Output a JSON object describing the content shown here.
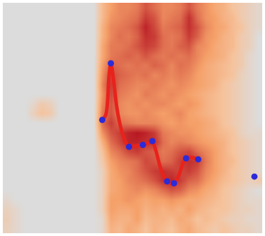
{
  "chart_data": {
    "type": "heatmap",
    "xlim": [
      -0.5,
      29.5
    ],
    "ylim": [
      -0.5,
      23.5
    ],
    "zlim": [
      0,
      1
    ],
    "tick_labels": false,
    "cells": [
      [
        0.1,
        0.05,
        0,
        0,
        0,
        0,
        0,
        0,
        0,
        0,
        0,
        0.05,
        0.3,
        0.25,
        0.35,
        0.3,
        0.2,
        0.3,
        0.25,
        0.2,
        0.3,
        0.35,
        0.25,
        0.2,
        0.15,
        0.2,
        0.15,
        0.1,
        0.1,
        0.05
      ],
      [
        0.12,
        0.05,
        0,
        0,
        0,
        0,
        0,
        0,
        0,
        0,
        0,
        0.05,
        0.35,
        0.3,
        0.3,
        0.4,
        0.25,
        0.3,
        0.3,
        0.25,
        0.35,
        0.3,
        0.2,
        0.25,
        0.2,
        0.15,
        0.1,
        0.1,
        0.05,
        0.05
      ],
      [
        0.1,
        0.05,
        0,
        0,
        0,
        0,
        0,
        0,
        0,
        0,
        0,
        0.1,
        0.4,
        0.35,
        0.35,
        0.4,
        0.3,
        0.35,
        0.3,
        0.35,
        0.3,
        0.4,
        0.3,
        0.25,
        0.2,
        0.2,
        0.15,
        0.1,
        0.1,
        0.05
      ],
      [
        0.05,
        0,
        0,
        0,
        0,
        0,
        0,
        0,
        0,
        0,
        0,
        0.1,
        0.4,
        0.4,
        0.45,
        0.4,
        0.35,
        0.4,
        0.4,
        0.45,
        0.4,
        0.35,
        0.35,
        0.3,
        0.25,
        0.2,
        0.15,
        0.1,
        0.05,
        0.05
      ],
      [
        0,
        0,
        0,
        0,
        0,
        0,
        0,
        0,
        0,
        0,
        0,
        0.1,
        0.35,
        0.4,
        0.45,
        0.5,
        0.45,
        0.5,
        0.6,
        0.7,
        0.65,
        0.5,
        0.45,
        0.35,
        0.3,
        0.2,
        0.15,
        0.1,
        0.05,
        0
      ],
      [
        0,
        0,
        0,
        0,
        0,
        0,
        0,
        0,
        0,
        0,
        0,
        0.1,
        0.35,
        0.4,
        0.5,
        0.55,
        0.6,
        0.7,
        0.85,
        0.9,
        0.8,
        0.65,
        0.6,
        0.45,
        0.35,
        0.25,
        0.2,
        0.15,
        0.1,
        0.15
      ],
      [
        0,
        0,
        0,
        0,
        0,
        0,
        0,
        0,
        0,
        0,
        0,
        0.1,
        0.35,
        0.45,
        0.5,
        0.6,
        0.7,
        0.8,
        0.85,
        0.8,
        0.75,
        0.8,
        0.7,
        0.5,
        0.4,
        0.3,
        0.2,
        0.15,
        0.1,
        0.05
      ],
      [
        0,
        0,
        0,
        0,
        0,
        0,
        0,
        0,
        0,
        0,
        0,
        0.15,
        0.4,
        0.5,
        0.55,
        0.6,
        0.75,
        0.7,
        0.6,
        0.65,
        0.8,
        0.85,
        0.8,
        0.55,
        0.4,
        0.3,
        0.25,
        0.15,
        0.1,
        0.05
      ],
      [
        0,
        0,
        0,
        0,
        0,
        0,
        0,
        0,
        0,
        0,
        0,
        0.2,
        0.5,
        0.6,
        0.75,
        0.8,
        0.7,
        0.65,
        0.55,
        0.6,
        0.7,
        0.75,
        0.6,
        0.5,
        0.4,
        0.3,
        0.2,
        0.15,
        0.1,
        0.05
      ],
      [
        0,
        0,
        0,
        0,
        0,
        0,
        0,
        0,
        0,
        0,
        0,
        0.3,
        0.6,
        0.75,
        0.9,
        0.9,
        0.85,
        0.85,
        0.6,
        0.5,
        0.55,
        0.5,
        0.45,
        0.4,
        0.35,
        0.3,
        0.2,
        0.15,
        0.1,
        0.05
      ],
      [
        0,
        0,
        0,
        0,
        0,
        0,
        0,
        0,
        0,
        0,
        0,
        0.45,
        0.7,
        0.8,
        0.9,
        0.95,
        0.9,
        0.8,
        0.55,
        0.5,
        0.45,
        0.45,
        0.4,
        0.35,
        0.3,
        0.25,
        0.2,
        0.1,
        0.05,
        0.05
      ],
      [
        0,
        0,
        0,
        0,
        0,
        0,
        0,
        0,
        0,
        0,
        0,
        0.6,
        0.8,
        0.6,
        0.55,
        0.5,
        0.5,
        0.5,
        0.45,
        0.4,
        0.45,
        0.4,
        0.4,
        0.35,
        0.3,
        0.2,
        0.15,
        0.1,
        0.05,
        0
      ],
      [
        0,
        0,
        0,
        0.1,
        0.2,
        0.15,
        0,
        0,
        0,
        0,
        0,
        0.55,
        0.7,
        0.5,
        0.45,
        0.45,
        0.5,
        0.45,
        0.4,
        0.45,
        0.5,
        0.4,
        0.35,
        0.3,
        0.25,
        0.2,
        0.15,
        0.1,
        0.05,
        0
      ],
      [
        0,
        0,
        0,
        0.05,
        0.15,
        0.1,
        0,
        0,
        0,
        0,
        0,
        0.5,
        0.7,
        0.5,
        0.45,
        0.5,
        0.45,
        0.5,
        0.5,
        0.45,
        0.4,
        0.45,
        0.4,
        0.3,
        0.25,
        0.2,
        0.15,
        0.1,
        0.05,
        0
      ],
      [
        0,
        0,
        0,
        0,
        0,
        0,
        0,
        0,
        0,
        0,
        0,
        0.45,
        0.75,
        0.55,
        0.5,
        0.45,
        0.55,
        0.5,
        0.45,
        0.5,
        0.45,
        0.4,
        0.35,
        0.3,
        0.25,
        0.2,
        0.15,
        0.1,
        0.05,
        0
      ],
      [
        0,
        0,
        0,
        0,
        0,
        0,
        0,
        0,
        0,
        0,
        0,
        0.5,
        0.8,
        0.6,
        0.55,
        0.5,
        0.5,
        0.55,
        0.5,
        0.45,
        0.5,
        0.45,
        0.4,
        0.35,
        0.3,
        0.2,
        0.15,
        0.1,
        0.05,
        0
      ],
      [
        0,
        0,
        0,
        0,
        0,
        0,
        0,
        0,
        0,
        0,
        0,
        0.45,
        0.75,
        0.65,
        0.6,
        0.55,
        0.6,
        0.5,
        0.55,
        0.5,
        0.55,
        0.5,
        0.4,
        0.35,
        0.3,
        0.25,
        0.2,
        0.1,
        0.05,
        0
      ],
      [
        0,
        0,
        0,
        0,
        0,
        0,
        0,
        0,
        0,
        0,
        0,
        0.4,
        0.65,
        0.6,
        0.55,
        0.6,
        0.55,
        0.65,
        0.6,
        0.5,
        0.6,
        0.55,
        0.45,
        0.35,
        0.3,
        0.25,
        0.2,
        0.15,
        0.05,
        0
      ],
      [
        0,
        0,
        0,
        0,
        0,
        0,
        0,
        0,
        0,
        0,
        0,
        0.35,
        0.55,
        0.6,
        0.65,
        0.6,
        0.7,
        0.6,
        0.55,
        0.6,
        0.55,
        0.6,
        0.5,
        0.4,
        0.35,
        0.3,
        0.2,
        0.15,
        0.05,
        0
      ],
      [
        0,
        0,
        0,
        0,
        0,
        0,
        0,
        0,
        0,
        0,
        0,
        0.35,
        0.55,
        0.55,
        0.6,
        0.7,
        0.8,
        0.75,
        0.6,
        0.55,
        0.65,
        0.7,
        0.5,
        0.45,
        0.35,
        0.3,
        0.25,
        0.15,
        0.1,
        0
      ],
      [
        0,
        0,
        0,
        0,
        0,
        0,
        0,
        0,
        0,
        0,
        0,
        0.3,
        0.5,
        0.6,
        0.55,
        0.65,
        0.85,
        0.8,
        0.6,
        0.55,
        0.6,
        0.8,
        0.65,
        0.45,
        0.4,
        0.3,
        0.25,
        0.15,
        0.1,
        0
      ],
      [
        0,
        0,
        0,
        0,
        0,
        0,
        0,
        0,
        0,
        0,
        0,
        0.3,
        0.5,
        0.55,
        0.6,
        0.7,
        0.9,
        0.75,
        0.55,
        0.6,
        0.65,
        0.85,
        0.7,
        0.5,
        0.4,
        0.35,
        0.25,
        0.2,
        0.1,
        0.05
      ],
      [
        0,
        0,
        0,
        0,
        0,
        0,
        0,
        0,
        0,
        0,
        0,
        0.25,
        0.45,
        0.5,
        0.55,
        0.6,
        0.8,
        0.7,
        0.5,
        0.55,
        0.6,
        0.85,
        0.6,
        0.45,
        0.4,
        0.3,
        0.25,
        0.15,
        0.1,
        0.05
      ],
      [
        0,
        0,
        0,
        0,
        0,
        0,
        0,
        0,
        0,
        0,
        0,
        0.25,
        0.4,
        0.5,
        0.5,
        0.55,
        0.7,
        0.6,
        0.5,
        0.5,
        0.55,
        0.7,
        0.55,
        0.45,
        0.35,
        0.3,
        0.2,
        0.15,
        0.1,
        0.05
      ]
    ],
    "series": [
      {
        "type": "line",
        "color": "#e8231c",
        "x": [
          11.0,
          11.4,
          11.8,
          12.0,
          12.3,
          12.7,
          13.2,
          13.7,
          14.1,
          14.9,
          15.7,
          16.3,
          16.8,
          17.2,
          17.7,
          18.2,
          18.7,
          19.3,
          19.8,
          20.3,
          20.7,
          21.3,
          22.1
        ],
        "y": [
          11.3,
          11.8,
          16.0,
          17.2,
          15.5,
          12.5,
          10.3,
          9.0,
          8.5,
          8.6,
          8.7,
          8.9,
          9.0,
          8.1,
          6.4,
          5.3,
          4.8,
          4.7,
          5.4,
          6.7,
          7.3,
          7.4,
          7.2
        ]
      },
      {
        "type": "scatter",
        "color": "#2b2bd9",
        "marker": "circle",
        "x": [
          11.0,
          12.0,
          14.1,
          15.7,
          16.8,
          18.5,
          19.3,
          20.7,
          22.1,
          28.6
        ],
        "y": [
          11.3,
          17.2,
          8.5,
          8.7,
          9.1,
          4.9,
          4.7,
          7.3,
          7.2,
          5.4
        ]
      }
    ]
  }
}
